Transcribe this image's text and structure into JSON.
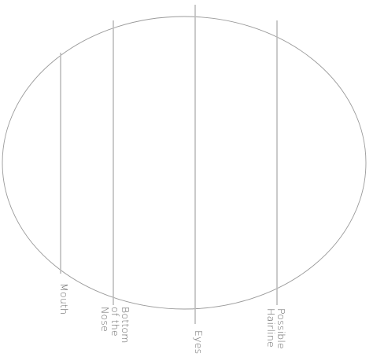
{
  "guides": [
    {
      "id": "mouth",
      "lines": [
        "Mouth"
      ]
    },
    {
      "id": "nose",
      "lines": [
        "Bottom",
        "of the",
        "Nose"
      ]
    },
    {
      "id": "eyes",
      "lines": [
        "Eyes"
      ]
    },
    {
      "id": "hairline",
      "lines": [
        "Possible",
        "Hairline"
      ]
    }
  ]
}
